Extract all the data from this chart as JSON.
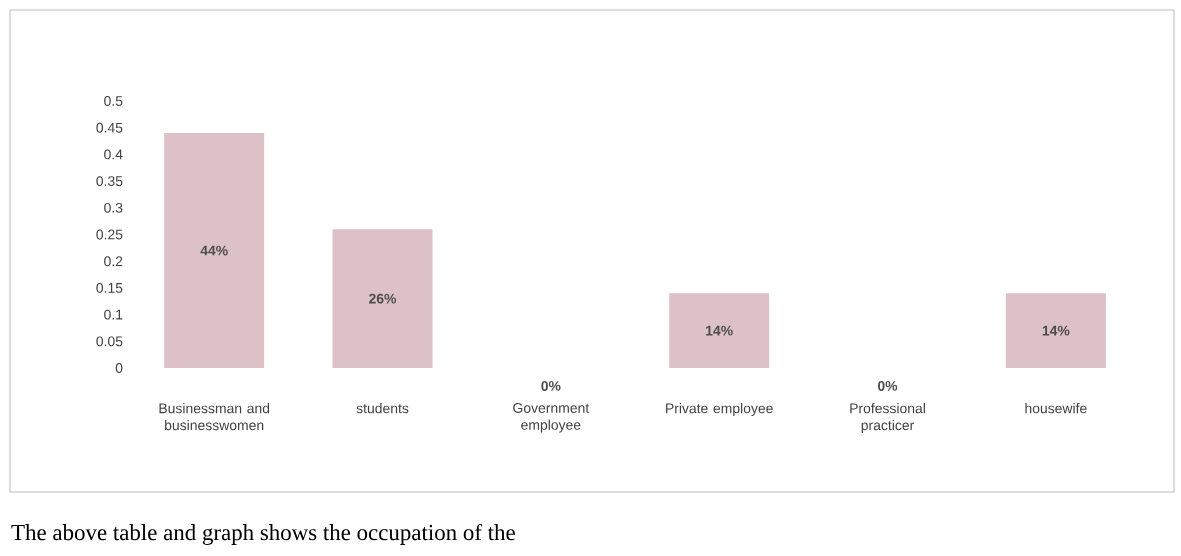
{
  "chart_data": {
    "type": "bar",
    "categories": [
      "Businessman and businesswomen",
      "students",
      "Government employee",
      "Private employee",
      "Professional practicer",
      "housewife"
    ],
    "values": [
      0.44,
      0.26,
      0,
      0.14,
      0,
      0.14
    ],
    "value_labels": [
      "44%",
      "26%",
      "0%",
      "14%",
      "0%",
      "14%"
    ],
    "color": "#dcc2c6",
    "ylim": [
      0,
      0.5
    ],
    "yticks": [
      0,
      0.05,
      0.1,
      0.15,
      0.2,
      0.25,
      0.3,
      0.35,
      0.4,
      0.45,
      0.5
    ],
    "grid": false,
    "annotations": [
      "The above table and graph shows the occupation of the"
    ]
  }
}
